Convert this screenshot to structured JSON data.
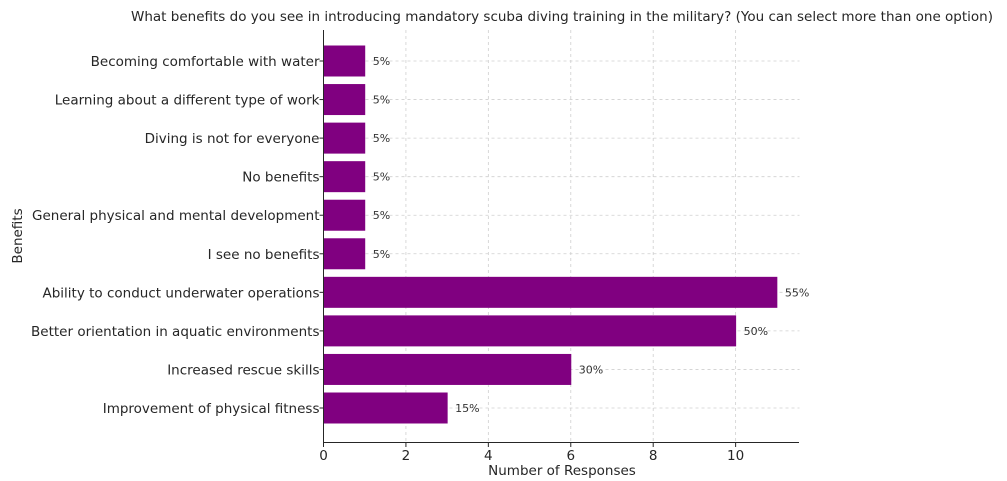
{
  "chart_data": {
    "type": "bar",
    "orientation": "horizontal",
    "title": "What benefits do you see in introducing mandatory scuba diving training in the military? (You can select more than one option)",
    "xlabel": "Number of Responses",
    "ylabel": "Benefits",
    "categories": [
      "Becoming comfortable with water",
      "Learning about a different type of work",
      "Diving is not for everyone",
      "No benefits",
      "General physical and mental development",
      "I see no benefits",
      "Ability to conduct underwater operations",
      "Better orientation in aquatic environments",
      "Increased rescue skills",
      "Improvement of physical fitness"
    ],
    "values": [
      1,
      1,
      1,
      1,
      1,
      1,
      11,
      10,
      6,
      3
    ],
    "data_labels": [
      "5%",
      "5%",
      "5%",
      "5%",
      "5%",
      "5%",
      "55%",
      "50%",
      "30%",
      "15%"
    ],
    "xticks": [
      0,
      2,
      4,
      6,
      8,
      10
    ],
    "xtick_labels": [
      "0",
      "2",
      "4",
      "6",
      "8",
      "10"
    ],
    "xlim": [
      0,
      11.55
    ],
    "grid": true,
    "legend": "none",
    "bar_color": "#800080"
  }
}
